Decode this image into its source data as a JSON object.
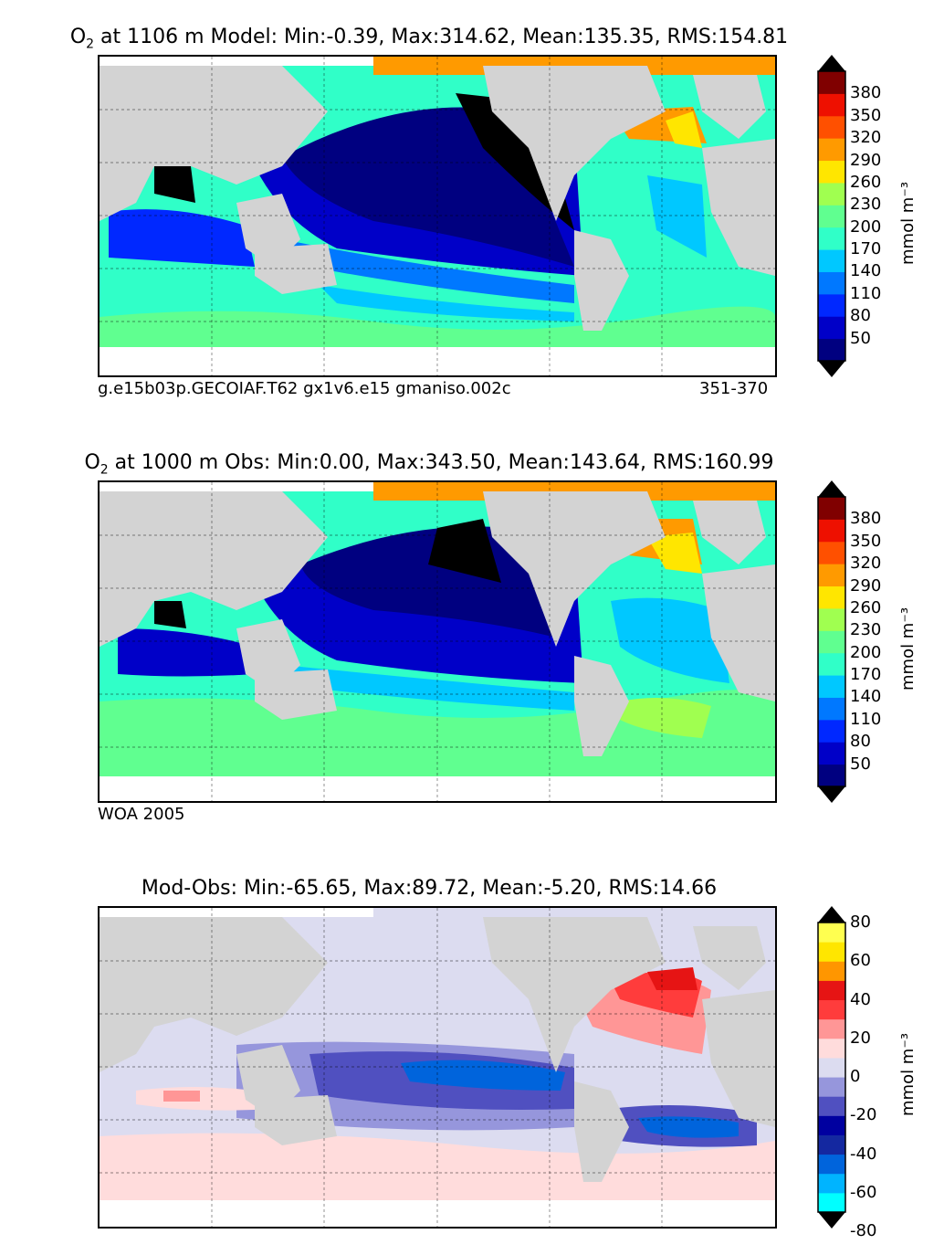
{
  "panels": [
    {
      "id": "model",
      "title_chem": "O",
      "title_chem_sub": "2",
      "title_rest": " at 1106 m Model: Min:-0.39, Max:314.62, Mean:135.35, RMS:154.81",
      "caption_left": "g.e15b03p.GECOIAF.T62 gx1v6.e15 gmaniso.002c",
      "caption_right": "351-370",
      "colorbar": {
        "ticks": [
          "380",
          "350",
          "320",
          "290",
          "260",
          "230",
          "200",
          "170",
          "140",
          "110",
          "80",
          "50"
        ],
        "label": "mmol m⁻³",
        "colors": [
          "#000080",
          "#0000c8",
          "#0028ff",
          "#0078ff",
          "#00c8ff",
          "#30ffc8",
          "#60ff90",
          "#a0ff50",
          "#ffe600",
          "#ff9a00",
          "#ff5000",
          "#ee1000",
          "#800000"
        ]
      }
    },
    {
      "id": "obs",
      "title_chem": "O",
      "title_chem_sub": "2",
      "title_rest": " at 1000 m Obs: Min:0.00, Max:343.50, Mean:143.64, RMS:160.99",
      "caption_left": "WOA 2005",
      "caption_right": "",
      "colorbar": {
        "ticks": [
          "380",
          "350",
          "320",
          "290",
          "260",
          "230",
          "200",
          "170",
          "140",
          "110",
          "80",
          "50"
        ],
        "label": "mmol m⁻³",
        "colors": [
          "#000080",
          "#0000c8",
          "#0028ff",
          "#0078ff",
          "#00c8ff",
          "#30ffc8",
          "#60ff90",
          "#a0ff50",
          "#ffe600",
          "#ff9a00",
          "#ff5000",
          "#ee1000",
          "#800000"
        ]
      }
    },
    {
      "id": "diff",
      "title_chem": "",
      "title_chem_sub": "",
      "title_rest": "Mod-Obs: Min:-65.65, Max:89.72, Mean:-5.20, RMS:14.66",
      "caption_left": "",
      "caption_right": "",
      "colorbar": {
        "ticks": [
          "80",
          "60",
          "40",
          "20",
          "0",
          "-20",
          "-40",
          "-60",
          "-80"
        ],
        "label": "mmol m⁻³",
        "colors": [
          "#00ffff",
          "#00b4ff",
          "#0064dc",
          "#1428a0",
          "#0000a0",
          "#5050c0",
          "#9696dc",
          "#dcdcf0",
          "#ffdcdc",
          "#ff9696",
          "#ff3c3c",
          "#e61414",
          "#ff9600",
          "#ffe600",
          "#ffff50"
        ]
      }
    }
  ],
  "colors": {
    "land": "#d3d3d3",
    "ice": "#ffffff",
    "grid": "#000000"
  }
}
